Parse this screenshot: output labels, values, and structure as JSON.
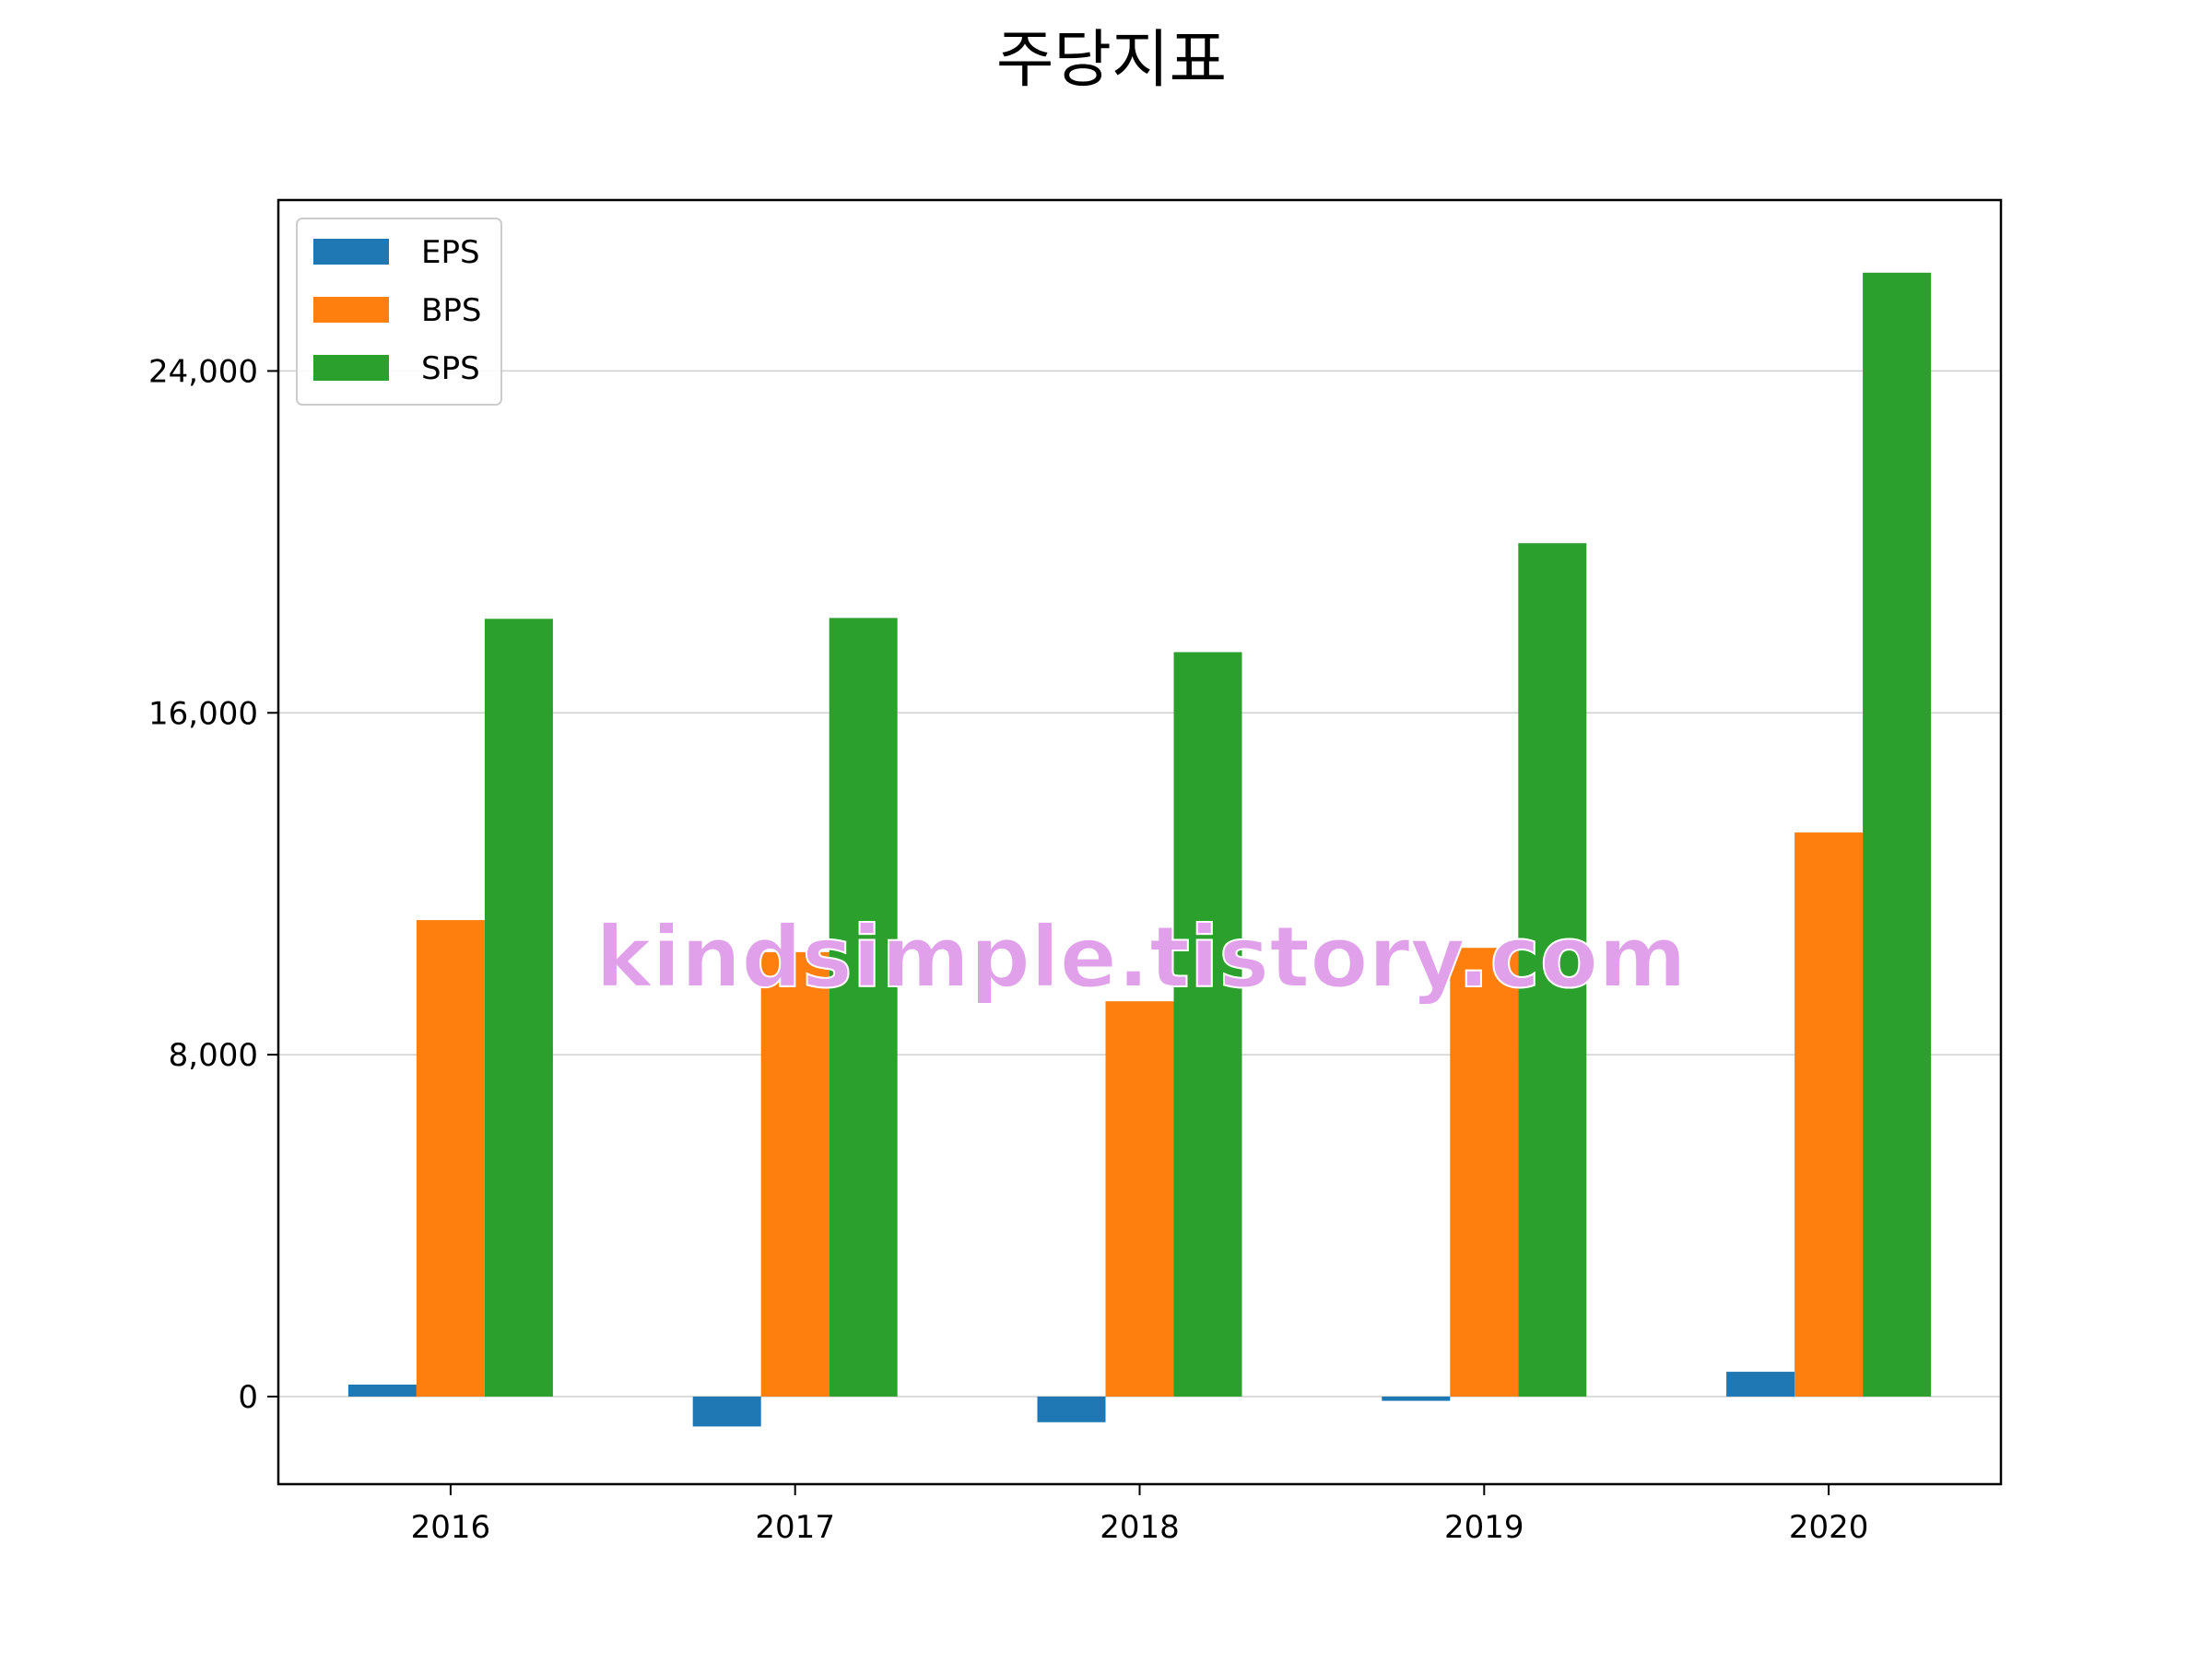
{
  "watermark": "kindsimple.tistory.com",
  "chart_data": {
    "type": "bar",
    "title": "주당지표",
    "xlabel": "",
    "ylabel": "",
    "categories": [
      "2016",
      "2017",
      "2018",
      "2019",
      "2020"
    ],
    "series": [
      {
        "name": "EPS",
        "color": "#1f77b4",
        "values": [
          280,
          -700,
          -600,
          -100,
          580
        ]
      },
      {
        "name": "BPS",
        "color": "#ff7f0e",
        "values": [
          11150,
          10400,
          9250,
          10500,
          13200
        ]
      },
      {
        "name": "SPS",
        "color": "#2ca02c",
        "values": [
          18200,
          18220,
          17420,
          19970,
          26300
        ]
      }
    ],
    "ylim": [
      -2050,
      28000
    ],
    "yticks": [
      0,
      8000,
      16000,
      24000
    ],
    "ytick_labels": [
      "0",
      "8,000",
      "16,000",
      "24,000"
    ],
    "grid": "y",
    "legend": "top-left"
  }
}
